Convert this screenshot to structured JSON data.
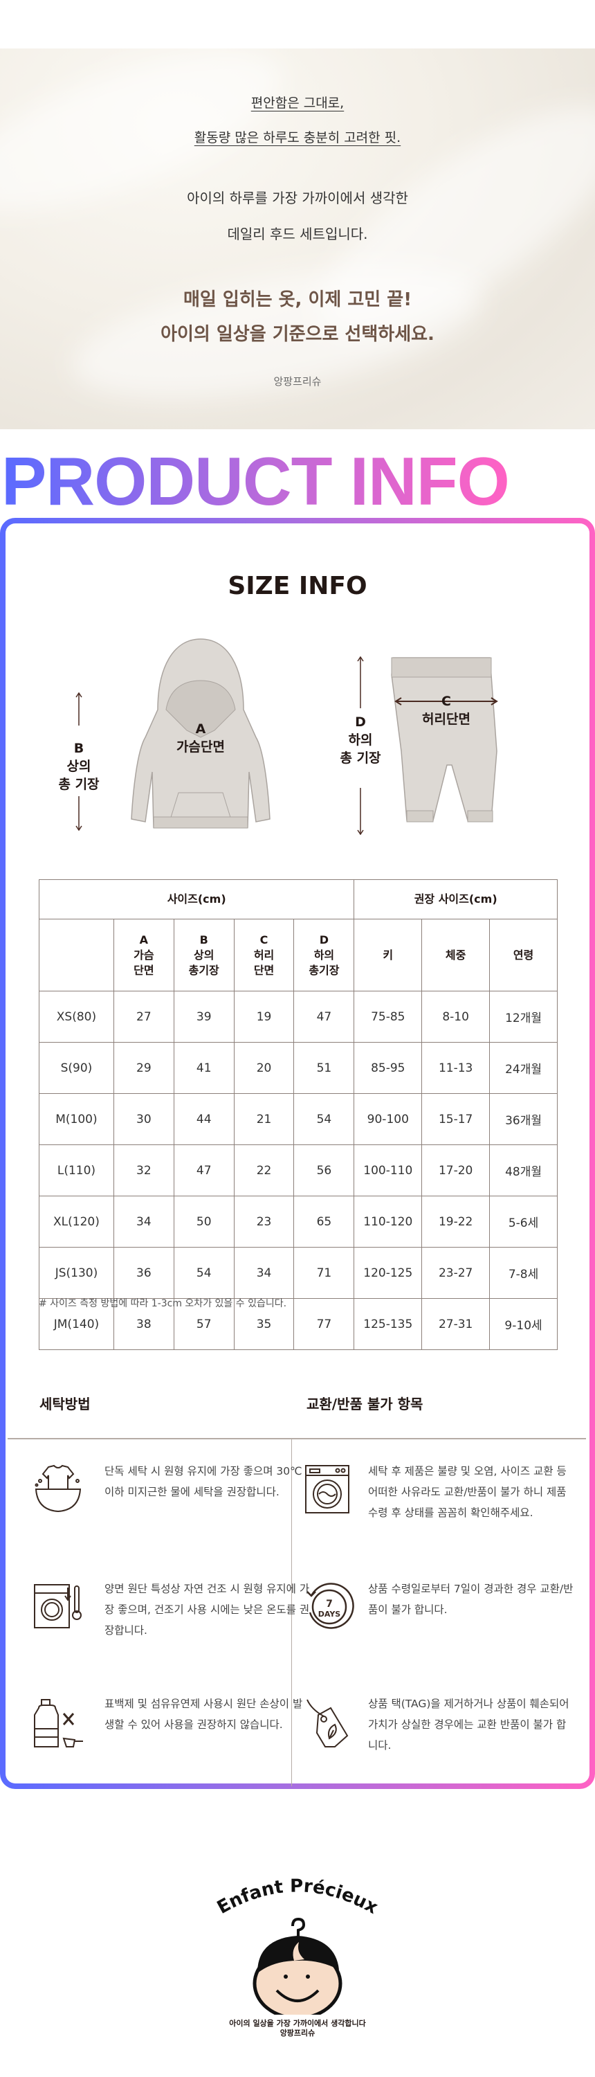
{
  "hero": {
    "line1": "편안함은 그대로,",
    "line2": "활동량 많은 하루도 충분히 고려한 핏.",
    "line3": "아이의 하루를 가장 가까이에서 생각한",
    "line4": "데일리 후드 세트입니다.",
    "line5": "매일 입히는 옷, 이제 고민 끝!",
    "line6": "아이의 일상을 기준으로 선택하세요.",
    "brand": "앙팡프리슈"
  },
  "section_title": "PRODUCT INFO",
  "colors": {
    "gradient_start": "#5a6bff",
    "gradient_end": "#ff62c4",
    "accent_brown": "#6e5547"
  },
  "size_info": {
    "title": "SIZE INFO",
    "top_label": {
      "letter": "A",
      "text": "가슴단면"
    },
    "top_length": {
      "letter": "B",
      "line1": "상의",
      "line2": "총 기장"
    },
    "bottom_label": {
      "letter": "C",
      "text": "허리단면"
    },
    "bottom_length": {
      "letter": "D",
      "line1": "하의",
      "line2": "총 기장"
    }
  },
  "table": {
    "group1": "사이즈(cm)",
    "group2": "권장 사이즈(cm)",
    "columns": [
      [
        "A",
        "가슴",
        "단면"
      ],
      [
        "B",
        "상의",
        "총기장"
      ],
      [
        "C",
        "허리",
        "단면"
      ],
      [
        "D",
        "하의",
        "총기장"
      ]
    ],
    "rec_columns": [
      "키",
      "체중",
      "연령"
    ],
    "rows": [
      [
        "XS(80)",
        "27",
        "39",
        "19",
        "47",
        "75-85",
        "8-10",
        "12개월"
      ],
      [
        "S(90)",
        "29",
        "41",
        "20",
        "51",
        "85-95",
        "11-13",
        "24개월"
      ],
      [
        "M(100)",
        "30",
        "44",
        "21",
        "54",
        "90-100",
        "15-17",
        "36개월"
      ],
      [
        "L(110)",
        "32",
        "47",
        "22",
        "56",
        "100-110",
        "17-20",
        "48개월"
      ],
      [
        "XL(120)",
        "34",
        "50",
        "23",
        "65",
        "110-120",
        "19-22",
        "5-6세"
      ],
      [
        "JS(130)",
        "36",
        "54",
        "34",
        "71",
        "120-125",
        "23-27",
        "7-8세"
      ],
      [
        "JM(140)",
        "38",
        "57",
        "35",
        "77",
        "125-135",
        "27-31",
        "9-10세"
      ]
    ],
    "note": "# 사이즈 측정 방법에 따라 1-3cm 오차가 있을 수 있습니다."
  },
  "care": {
    "left_title": "세탁방법",
    "right_title": "교환/반품 불가 항목",
    "left": [
      {
        "icon": "hand-wash-basin-icon",
        "text": "단독 세탁 시 원형 유지에 가장 좋으며 30℃ 이하 미지근한 물에 세탁을 권장합니다."
      },
      {
        "icon": "dryer-temperature-icon",
        "text": "양면 원단 특성상 자연 건조 시 원형 유지에 가장 좋으며, 건조기 사용 시에는 낮은 온도를 권장합니다."
      },
      {
        "icon": "no-bleach-icon",
        "text": "표백제 및 섬유유연제 사용시 원단 손상이 발생할 수 있어 사용을 권장하지 않습니다."
      }
    ],
    "right": [
      {
        "icon": "washing-machine-icon",
        "text": "세탁 후 제품은 불량 및 오염, 사이즈 교환 등 어떠한 사유라도 교환/반품이 불가 하니 제품 수령 후 상태를 꼼꼼히 확인해주세요."
      },
      {
        "icon": "seven-days-icon",
        "text": "상품 수령일로부터 7일이 경과한 경우 교환/반품이 불가 합니다.",
        "badge_num": "7",
        "badge_text": "DAYS"
      },
      {
        "icon": "price-tag-icon",
        "text": "상품 택(TAG)을 제거하거나 상품이 훼손되어 가치가 상실한 경우에는 교환 반품이 불가 합니다."
      }
    ]
  },
  "footer": {
    "logo_text": "Enfant Précieux",
    "tagline": "아이의 일상을 가장 가까이에서 생각합니다",
    "brand": "앙팡프리슈"
  }
}
